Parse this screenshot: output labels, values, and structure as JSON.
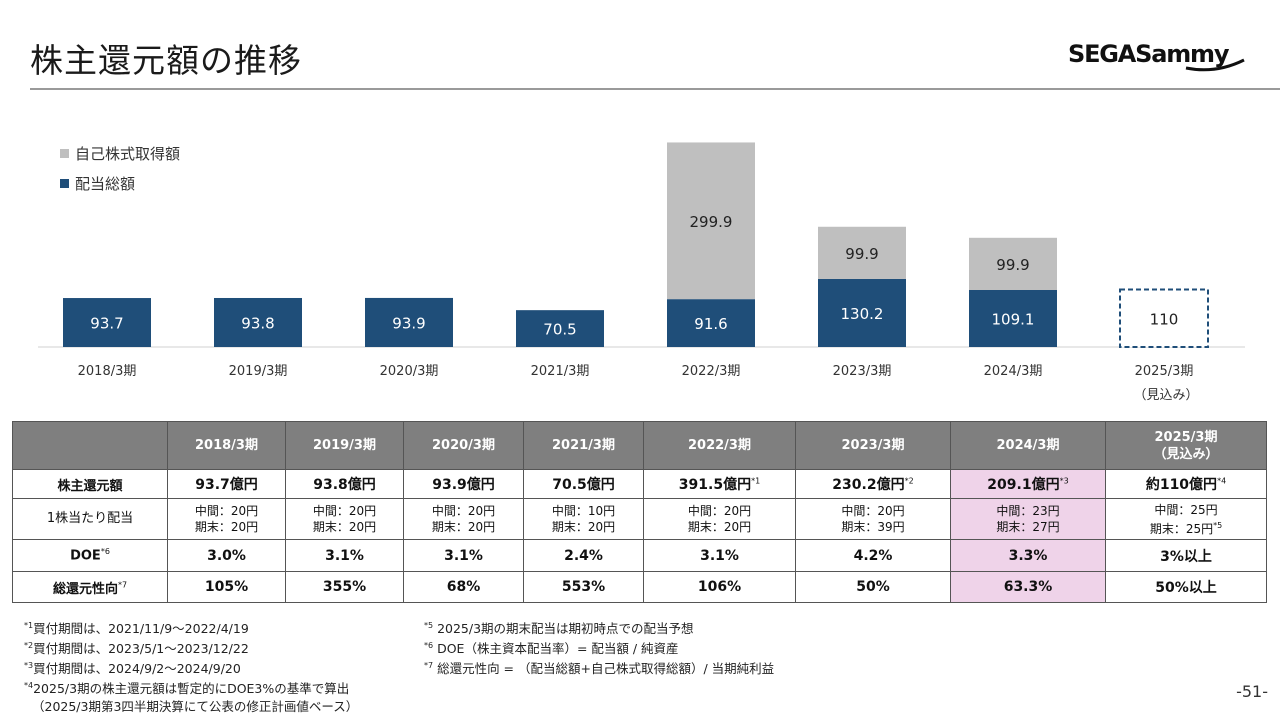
{
  "page": {
    "title": "株主還元額の推移",
    "page_number": "-51-"
  },
  "logo": {
    "text": "SEGASammy"
  },
  "colors": {
    "buyback": "#bfbfbf",
    "dividend": "#1f4e79",
    "forecast_border": "#1f4e79",
    "highlight": "#efd3e9",
    "table_header": "#7f7f7f"
  },
  "chart_data": {
    "type": "bar",
    "stacked": true,
    "categories": [
      "2018/3期",
      "2019/3期",
      "2020/3期",
      "2021/3期",
      "2022/3期",
      "2023/3期",
      "2024/3期",
      "2025/3期"
    ],
    "category_sublabels": [
      "",
      "",
      "",
      "",
      "",
      "",
      "",
      "（見込み）"
    ],
    "series": [
      {
        "name": "配当総額",
        "values": [
          93.7,
          93.8,
          93.9,
          70.5,
          91.6,
          130.2,
          109.1,
          null
        ]
      },
      {
        "name": "自己株式取得額",
        "values": [
          null,
          null,
          null,
          null,
          299.9,
          99.9,
          99.9,
          null
        ]
      }
    ],
    "forecast": {
      "category": "2025/3期",
      "value": 110,
      "label": "110"
    },
    "ylim": [
      0,
      400
    ],
    "legend_position": "top-left",
    "grid": false
  },
  "table": {
    "headers": [
      "2018/3期",
      "2019/3期",
      "2020/3期",
      "2021/3期",
      "2022/3期",
      "2023/3期",
      "2024/3期",
      "2025/3期",
      "（見込み）"
    ],
    "row_labels": {
      "total": "株主還元額",
      "per_share": "1株当たり配当",
      "doe": "DOE",
      "doe_note": "*6",
      "payout": "総還元性向",
      "payout_note": "*7"
    },
    "total": [
      {
        "value": "93.7億円",
        "note": ""
      },
      {
        "value": "93.8億円",
        "note": ""
      },
      {
        "value": "93.9億円",
        "note": ""
      },
      {
        "value": "70.5億円",
        "note": ""
      },
      {
        "value": "391.5億円",
        "note": "*1"
      },
      {
        "value": "230.2億円",
        "note": "*2"
      },
      {
        "value": "209.1億円",
        "note": "*3"
      },
      {
        "value": "約110億円",
        "note": "*4"
      }
    ],
    "per_share": [
      {
        "interim": "中間：20円",
        "final": "期末：20円",
        "note": ""
      },
      {
        "interim": "中間：20円",
        "final": "期末：20円",
        "note": ""
      },
      {
        "interim": "中間：20円",
        "final": "期末：20円",
        "note": ""
      },
      {
        "interim": "中間：10円",
        "final": "期末：20円",
        "note": ""
      },
      {
        "interim": "中間：20円",
        "final": "期末：20円",
        "note": ""
      },
      {
        "interim": "中間：20円",
        "final": "期末：39円",
        "note": ""
      },
      {
        "interim": "中間：23円",
        "final": "期末：27円",
        "note": ""
      },
      {
        "interim": "中間：25円",
        "final": "期末：25円",
        "note": "*5"
      }
    ],
    "doe": [
      "3.0%",
      "3.1%",
      "3.1%",
      "2.4%",
      "3.1%",
      "4.2%",
      "3.3%",
      "3%以上"
    ],
    "payout": [
      "105%",
      "355%",
      "68%",
      "553%",
      "106%",
      "50%",
      "63.3%",
      "50%以上"
    ]
  },
  "notes": {
    "left": [
      {
        "mark": "*1",
        "text": "買付期間は、2021/11/9～2022/4/19"
      },
      {
        "mark": "*2",
        "text": "買付期間は、2023/5/1～2023/12/22"
      },
      {
        "mark": "*3",
        "text": "買付期間は、2024/9/2～2024/9/20"
      },
      {
        "mark": "*4",
        "text": "2025/3期の株主還元額は暫定的にDOE3%の基準で算出"
      },
      {
        "mark": "",
        "text": "（2025/3期第3四半期決算にて公表の修正計画値ベース）"
      }
    ],
    "right": [
      {
        "mark": "*5",
        "text": "2025/3期の期末配当は期初時点での配当予想"
      },
      {
        "mark": "*6",
        "text": "DOE（株主資本配当率）= 配当額 / 純資産"
      },
      {
        "mark": "*7",
        "text": "総還元性向 = （配当総額+自己株式取得総額）/ 当期純利益"
      }
    ]
  }
}
